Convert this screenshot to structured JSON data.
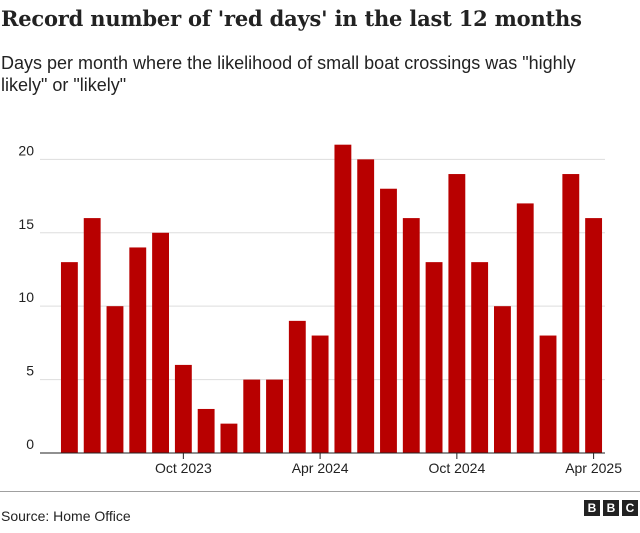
{
  "title": "Record number of 'red days' in the last 12 months",
  "subtitle": "Days per month where the likelihood of small boat crossings was \"highly likely\" or \"likely\"",
  "source": "Source: Home Office",
  "logo": [
    "B",
    "B",
    "C"
  ],
  "chart_data": {
    "type": "bar",
    "bar_color": "#b80000",
    "grid_color": "#dddddd",
    "baseline_color": "#222222",
    "ylim": [
      0,
      22
    ],
    "yticks": [
      0,
      5,
      10,
      15,
      20
    ],
    "values": [
      13,
      16,
      10,
      14,
      15,
      6,
      3,
      2,
      5,
      5,
      9,
      8,
      21,
      20,
      18,
      16,
      13,
      19,
      13,
      10,
      17,
      8,
      19,
      16
    ],
    "xtick_labels": [
      {
        "index": 5,
        "label": "Oct 2023"
      },
      {
        "index": 11,
        "label": "Apr 2024"
      },
      {
        "index": 17,
        "label": "Oct 2024"
      },
      {
        "index": 23,
        "label": "Apr 2025"
      }
    ],
    "grid": true
  }
}
